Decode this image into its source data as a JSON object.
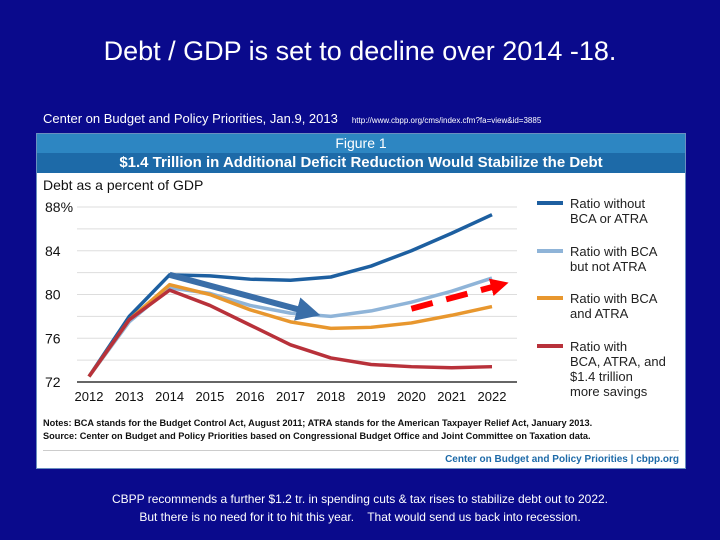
{
  "slide": {
    "title": "Debt / GDP is set to decline over 2014 -18.",
    "source": "Center on Budget and Policy Priorities, Jan.9, 2013",
    "url": "http://www.cbpp.org/cms/index.cfm?fa=view&id=3885",
    "caption1": "CBPP recommends a further $1.2 tr. in spending cuts & tax rises to stabilize debt out to 2022.",
    "caption2": "But there is no need for it to hit this year.    That would send us back into recession."
  },
  "chart_data": {
    "type": "line",
    "figure_label": "Figure 1",
    "title": "$1.4 Trillion in Additional Deficit Reduction Would Stabilize the Debt",
    "ylabel": "Debt as a percent of GDP",
    "ylim": [
      72,
      88
    ],
    "yticks": [
      "88%",
      "84",
      "80",
      "76",
      "72"
    ],
    "grid": true,
    "legend": "right",
    "x": [
      "2012",
      "2013",
      "2014",
      "2015",
      "2016",
      "2017",
      "2018",
      "2019",
      "2020",
      "2021",
      "2022"
    ],
    "series": [
      {
        "name": "Ratio without BCA or ATRA",
        "color": "#1d5fa0",
        "values": [
          72.5,
          78,
          81.8,
          81.7,
          81.4,
          81.3,
          81.6,
          82.6,
          84,
          85.6,
          87.3
        ]
      },
      {
        "name": "Ratio with BCA but not ATRA",
        "color": "#8fb4d8",
        "values": [
          72.5,
          77.5,
          80.6,
          80.1,
          79,
          78.3,
          78,
          78.5,
          79.3,
          80.3,
          81.5
        ]
      },
      {
        "name": "Ratio with BCA and ATRA",
        "color": "#e8972e",
        "values": [
          72.5,
          77.7,
          80.9,
          80,
          78.6,
          77.5,
          76.9,
          77,
          77.4,
          78.1,
          78.9
        ]
      },
      {
        "name": "Ratio with BCA, ATRA, and $1.4 trillion more savings",
        "color": "#b8313a",
        "values": [
          72.5,
          77.7,
          80.4,
          79,
          77.2,
          75.4,
          74.2,
          73.6,
          73.4,
          73.3,
          73.4
        ]
      }
    ],
    "annotations": [
      {
        "type": "arrow",
        "color": "#3a6ea8",
        "from": [
          "2014",
          81.8
        ],
        "to": [
          "2018",
          78.2
        ]
      },
      {
        "type": "dashed-arrow",
        "color": "#ff0000",
        "from": [
          "2020",
          78.7
        ],
        "to": [
          "2022",
          80.8
        ]
      }
    ],
    "notes": "Notes: BCA stands for the Budget Control Act, August 2011; ATRA stands for the American Taxpayer Relief Act, January 2013.",
    "source": "Source: Center on Budget and Policy Priorities based on Congressional Budget Office and Joint Committee on Taxation data.",
    "brand": "Center on Budget and Policy Priorities | cbpp.org"
  }
}
